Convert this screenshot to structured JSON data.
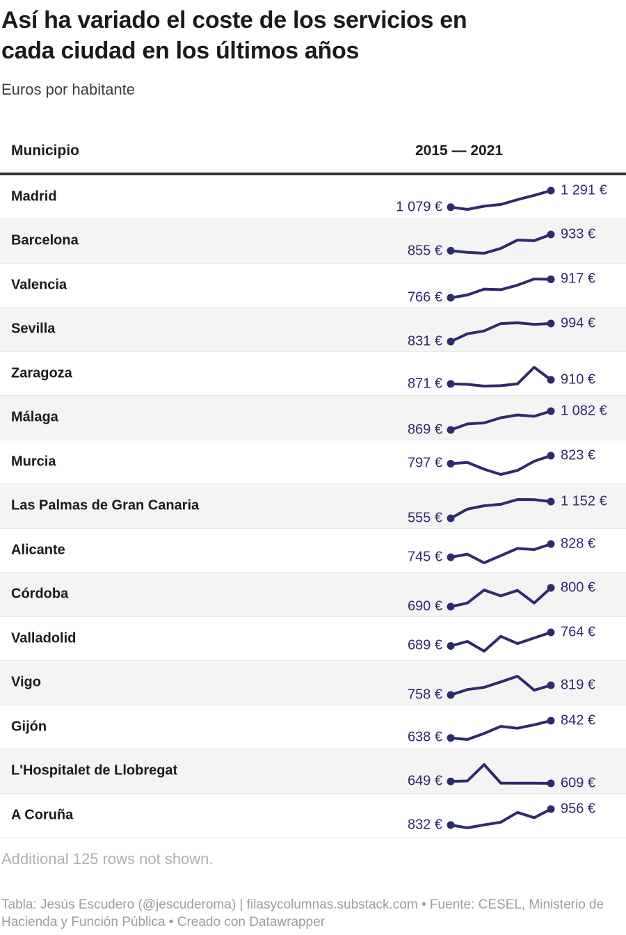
{
  "header": {
    "title_line1": "Así ha variado el coste de los servicios en",
    "title_line2": "cada ciudad en los últimos años",
    "subtitle": "Euros por habitante"
  },
  "table": {
    "municipio_header": "Municipio",
    "range_header": "2015 — 2021"
  },
  "chart_data": {
    "type": "line",
    "title": "Así ha variado el coste de los servicios en cada ciudad en los últimos años",
    "subtitle": "Euros por habitante",
    "columns": [
      "Municipio",
      "2015 — 2021"
    ],
    "x": [
      2015,
      2016,
      2017,
      2018,
      2019,
      2020,
      2021
    ],
    "unit": "€",
    "legend_position": "none",
    "grid": false,
    "series": [
      {
        "name": "Madrid",
        "values": [
          1079,
          1050,
          1091,
          1113,
          1175,
          1230,
          1291
        ],
        "start_label": "1 079 €",
        "end_label": "1 291 €"
      },
      {
        "name": "Barcelona",
        "values": [
          855,
          847,
          843,
          866,
          906,
          903,
          933
        ],
        "start_label": "855 €",
        "end_label": "933 €"
      },
      {
        "name": "Valencia",
        "values": [
          766,
          789,
          837,
          832,
          869,
          920,
          917
        ],
        "start_label": "766 €",
        "end_label": "917 €"
      },
      {
        "name": "Sevilla",
        "values": [
          831,
          901,
          927,
          993,
          1000,
          986,
          994
        ],
        "start_label": "831 €",
        "end_label": "994 €"
      },
      {
        "name": "Zaragoza",
        "values": [
          871,
          866,
          849,
          853,
          871,
          1032,
          910
        ],
        "start_label": "871 €",
        "end_label": "910 €"
      },
      {
        "name": "Málaga",
        "values": [
          869,
          937,
          949,
          1007,
          1039,
          1024,
          1082
        ],
        "start_label": "869 €",
        "end_label": "1 082 €"
      },
      {
        "name": "Murcia",
        "values": [
          797,
          801,
          779,
          762,
          775,
          805,
          823
        ],
        "start_label": "797 €",
        "end_label": "823 €"
      },
      {
        "name": "Las Palmas de Gran Canaria",
        "values": [
          555,
          883,
          1003,
          1055,
          1226,
          1220,
          1152
        ],
        "start_label": "555 €",
        "end_label": "1 152 €"
      },
      {
        "name": "Alicante",
        "values": [
          745,
          764,
          710,
          755,
          800,
          793,
          828
        ],
        "start_label": "745 €",
        "end_label": "828 €"
      },
      {
        "name": "Córdoba",
        "values": [
          690,
          711,
          787,
          753,
          785,
          711,
          800
        ],
        "start_label": "690 €",
        "end_label": "800 €"
      },
      {
        "name": "Valladolid",
        "values": [
          689,
          714,
          660,
          742,
          702,
          733,
          764
        ],
        "start_label": "689 €",
        "end_label": "764 €"
      },
      {
        "name": "Vigo",
        "values": [
          758,
          792,
          806,
          840,
          876,
          788,
          819
        ],
        "start_label": "758 €",
        "end_label": "819 €"
      },
      {
        "name": "Gijón",
        "values": [
          638,
          619,
          692,
          775,
          753,
          794,
          842
        ],
        "start_label": "638 €",
        "end_label": "842 €"
      },
      {
        "name": "L'Hospitalet de Llobregat",
        "values": [
          649,
          660,
          1000,
          615,
          612,
          614,
          609
        ],
        "start_label": "649 €",
        "end_label": "609 €"
      },
      {
        "name": "A Coruña",
        "values": [
          832,
          810,
          833,
          854,
          930,
          889,
          956
        ],
        "start_label": "832 €",
        "end_label": "956 €"
      }
    ]
  },
  "footer": {
    "additional_note": "Additional 125 rows not shown.",
    "attribution": "Tabla: Jesús Escudero (@jescuderoma) | filasycolumnas.substack.com • Fuente: CESEL, Ministerio de Hacienda y Función Pública • Creado con Datawrapper"
  },
  "colors": {
    "line": "#2c2c6c",
    "value_text": "#2c2c6c",
    "title_text": "#1a1a1a",
    "subtitle_text": "#3c3c3c",
    "header_rule": "#333333",
    "row_alt_bg": "#f4f4f4",
    "row_divider": "#e9e9e9",
    "muted_light": "#b0b0b0",
    "muted_text": "#9c9c9c"
  }
}
